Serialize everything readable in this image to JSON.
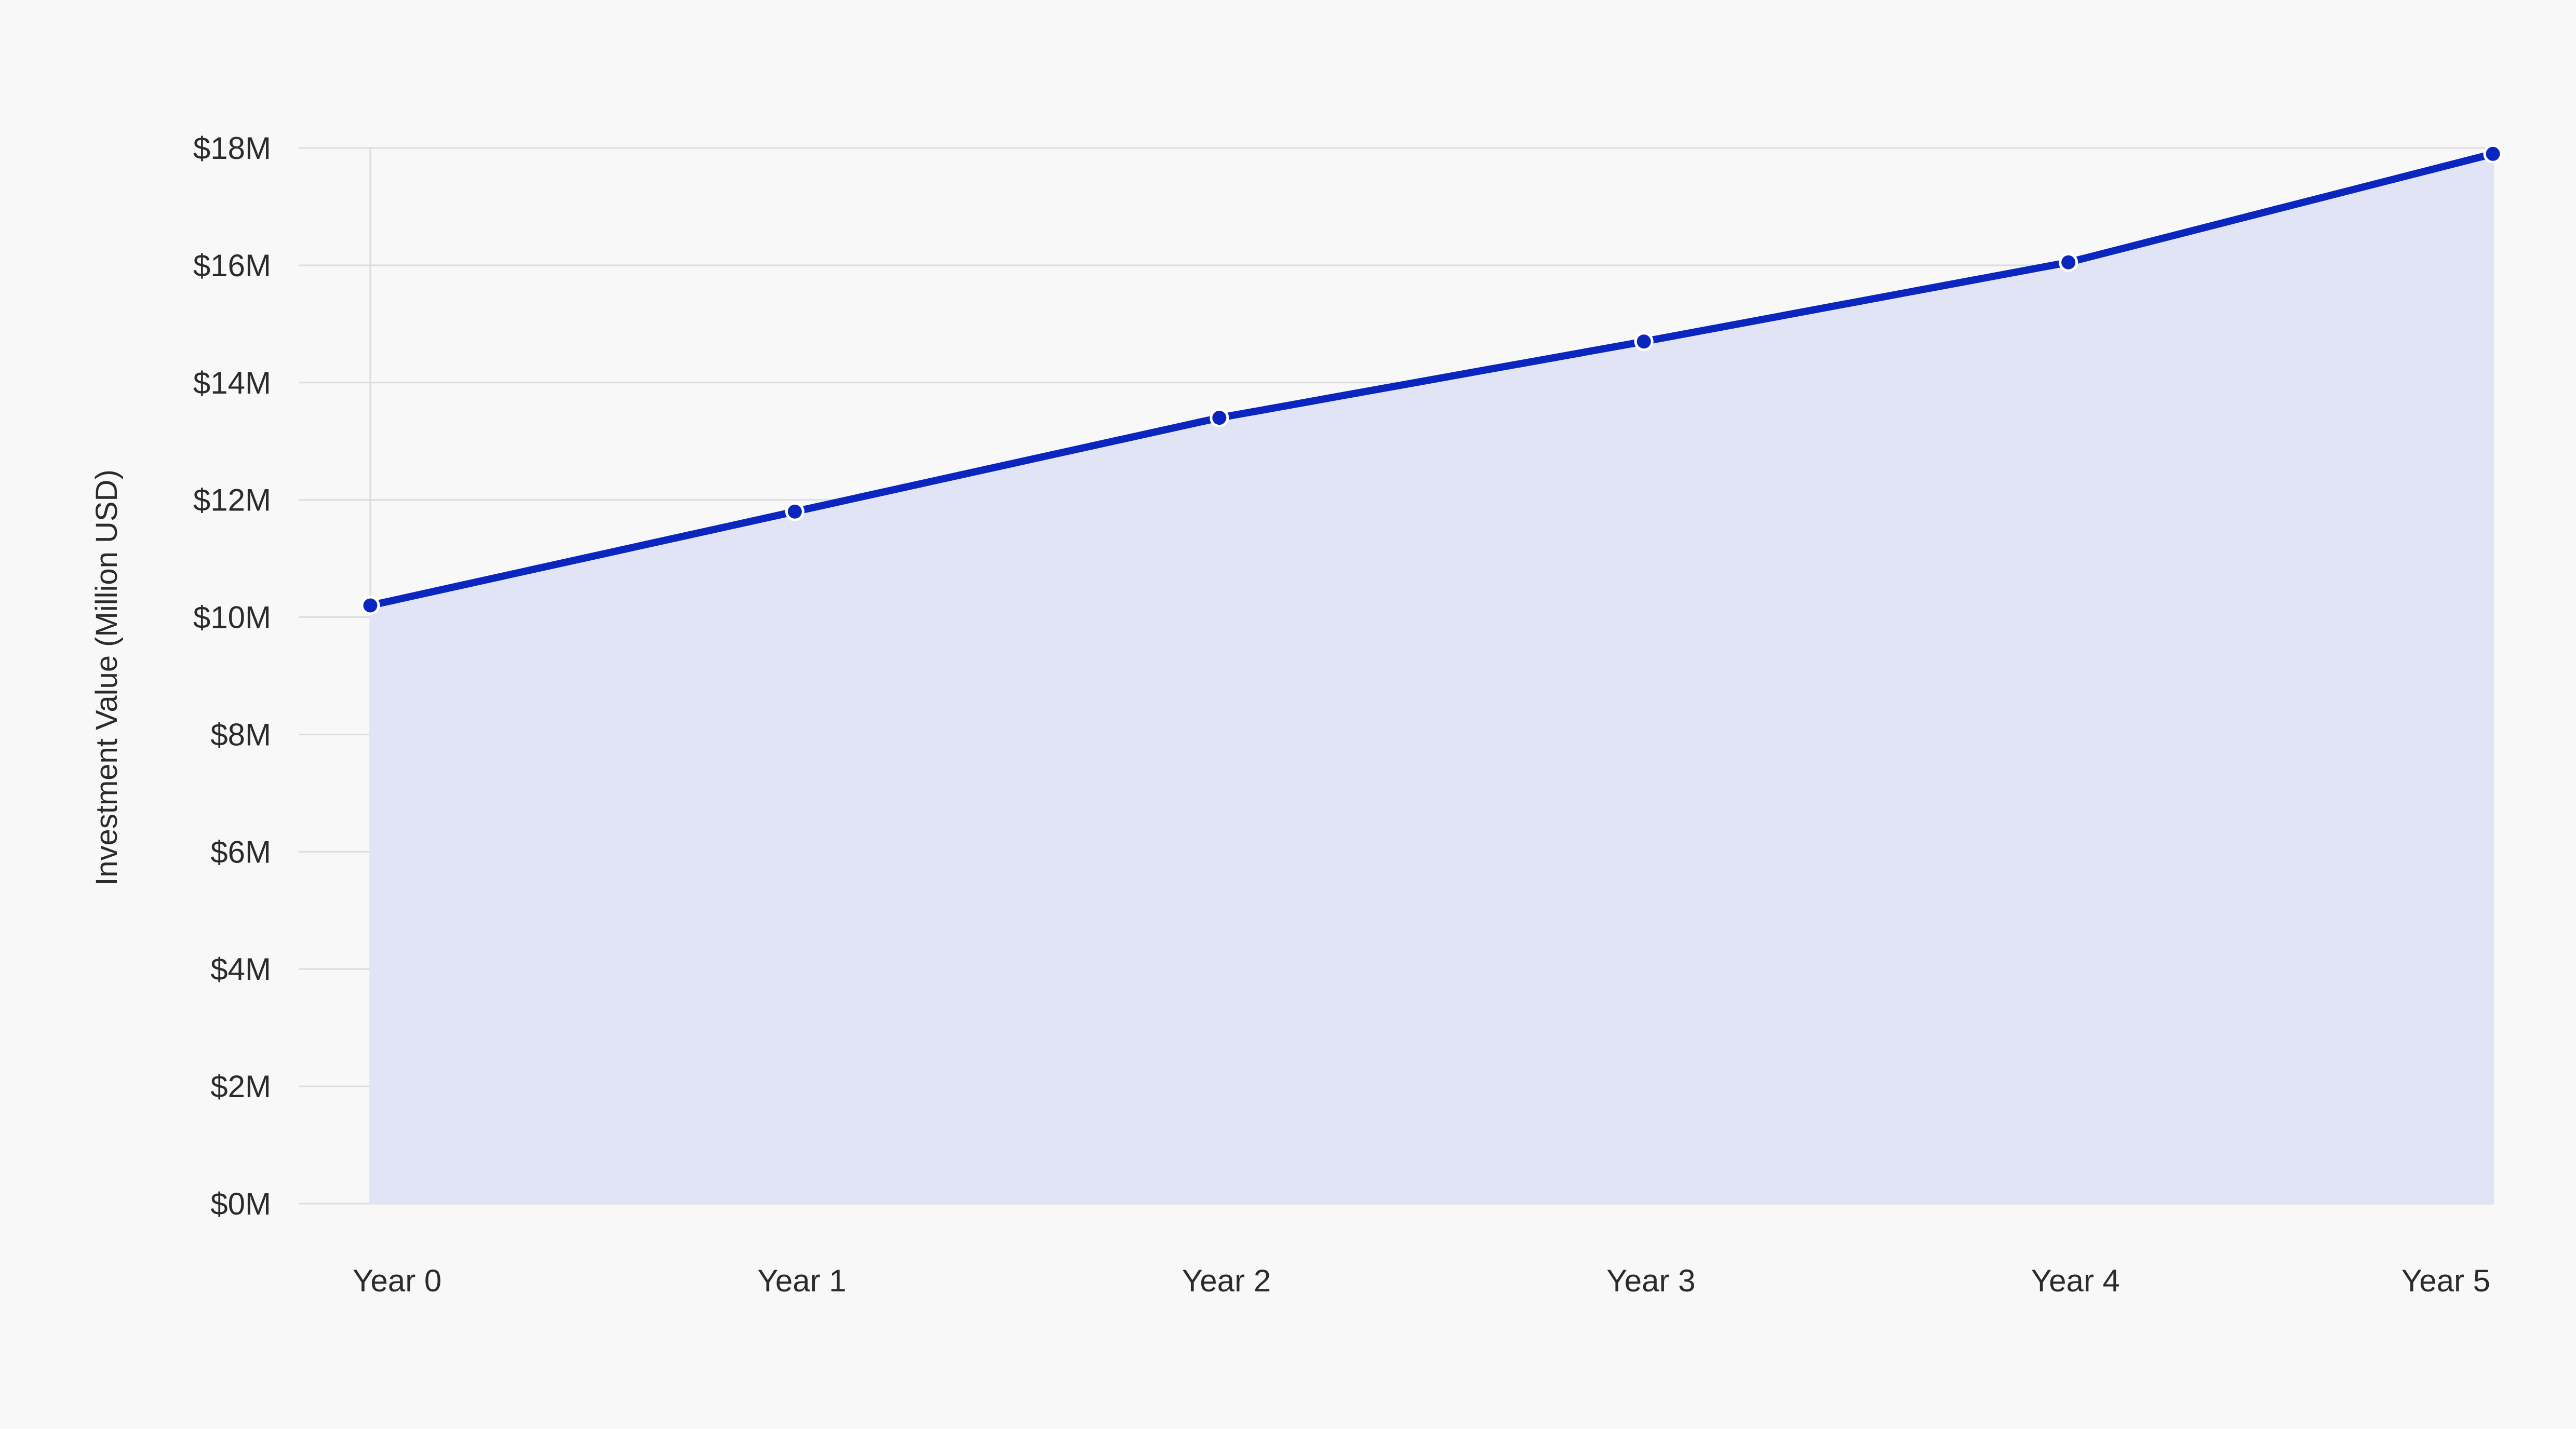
{
  "chart_data": {
    "type": "area",
    "title": "",
    "xlabel": "",
    "ylabel": "Investment Value (Million USD)",
    "categories": [
      "Year 0",
      "Year 1",
      "Year 2",
      "Year 3",
      "Year 4",
      "Year 5"
    ],
    "series": [
      {
        "values": [
          10.2,
          11.8,
          13.4,
          14.7,
          16.05,
          17.9
        ]
      }
    ],
    "y_ticks": [
      0,
      2,
      4,
      6,
      8,
      10,
      12,
      14,
      16,
      18
    ],
    "y_tick_labels": [
      "$0M",
      "$2M",
      "$4M",
      "$6M",
      "$8M",
      "$10M",
      "$12M",
      "$14M",
      "$16M",
      "$18M"
    ],
    "ylim": [
      0,
      18
    ],
    "grid": "horizontal",
    "legend": "none",
    "colors": {
      "line": "#0a26be",
      "fill": "#e1e4f5",
      "grid": "#dcdde2",
      "background": "#f8f8f8",
      "marker_stroke": "#ffffff"
    }
  }
}
